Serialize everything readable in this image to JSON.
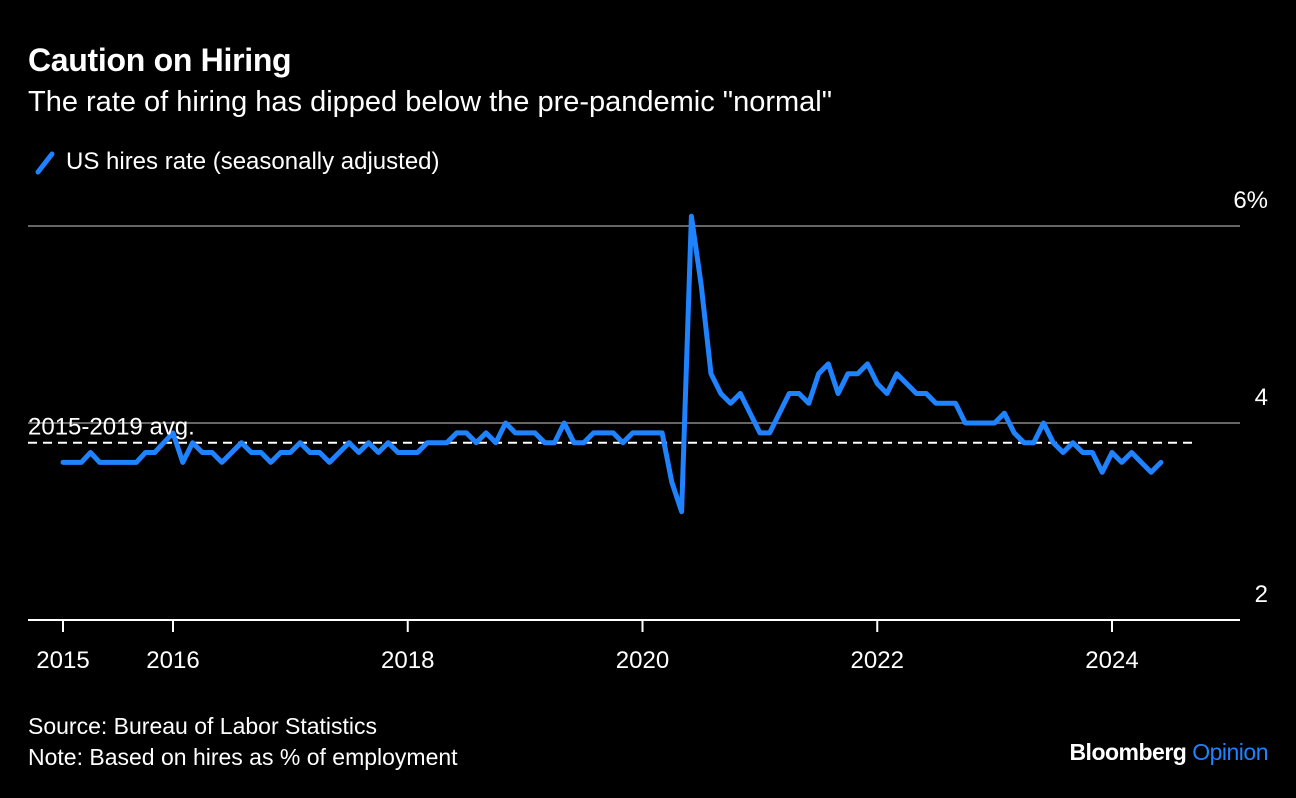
{
  "title": "Caution on Hiring",
  "subtitle": "The rate of hiring has dipped below the pre-pandemic \"normal\"",
  "source": "Source: Bureau of Labor Statistics",
  "note": "Note: Based on hires as % of employment",
  "brand": {
    "name": "Bloomberg",
    "section": "Opinion"
  },
  "colors": {
    "series": "#1f82ff",
    "background": "#000000",
    "grid": "#666666"
  },
  "chart_data": {
    "type": "line",
    "title": "Caution on Hiring",
    "subtitle": "The rate of hiring has dipped below the pre-pandemic \"normal\"",
    "xlabel": "",
    "ylabel": "",
    "ylim": [
      2,
      6
    ],
    "xlim": [
      2015,
      2025
    ],
    "y_ticks": [
      2,
      4,
      6
    ],
    "y_tick_labels": [
      "2",
      "4",
      "6%"
    ],
    "x_ticks": [
      2015,
      2016,
      2018,
      2020,
      2022,
      2024
    ],
    "x_tick_labels": [
      "2015",
      "2016",
      "2018",
      "2020",
      "2022",
      "2024"
    ],
    "grid": true,
    "legend": "top-left",
    "reference_line": {
      "label": "2015-2019 avg.",
      "value": 3.8
    },
    "series": [
      {
        "name": "US hires rate (seasonally adjusted)",
        "x_start": "2015-01",
        "frequency": "monthly",
        "values": [
          3.6,
          3.6,
          3.6,
          3.7,
          3.6,
          3.6,
          3.6,
          3.6,
          3.6,
          3.7,
          3.7,
          3.8,
          3.9,
          3.6,
          3.8,
          3.7,
          3.7,
          3.6,
          3.7,
          3.8,
          3.7,
          3.7,
          3.6,
          3.7,
          3.7,
          3.8,
          3.7,
          3.7,
          3.6,
          3.7,
          3.8,
          3.7,
          3.8,
          3.7,
          3.8,
          3.7,
          3.7,
          3.7,
          3.8,
          3.8,
          3.8,
          3.9,
          3.9,
          3.8,
          3.9,
          3.8,
          4.0,
          3.9,
          3.9,
          3.9,
          3.8,
          3.8,
          4.0,
          3.8,
          3.8,
          3.9,
          3.9,
          3.9,
          3.8,
          3.9,
          3.9,
          3.9,
          3.9,
          3.4,
          3.1,
          6.1,
          5.4,
          4.5,
          4.3,
          4.2,
          4.3,
          4.1,
          3.9,
          3.9,
          4.1,
          4.3,
          4.3,
          4.2,
          4.5,
          4.6,
          4.3,
          4.5,
          4.5,
          4.6,
          4.4,
          4.3,
          4.5,
          4.4,
          4.3,
          4.3,
          4.2,
          4.2,
          4.2,
          4.0,
          4.0,
          4.0,
          4.0,
          4.1,
          3.9,
          3.8,
          3.8,
          4.0,
          3.8,
          3.7,
          3.8,
          3.7,
          3.7,
          3.5,
          3.7,
          3.6,
          3.7,
          3.6,
          3.5,
          3.6
        ]
      }
    ]
  }
}
